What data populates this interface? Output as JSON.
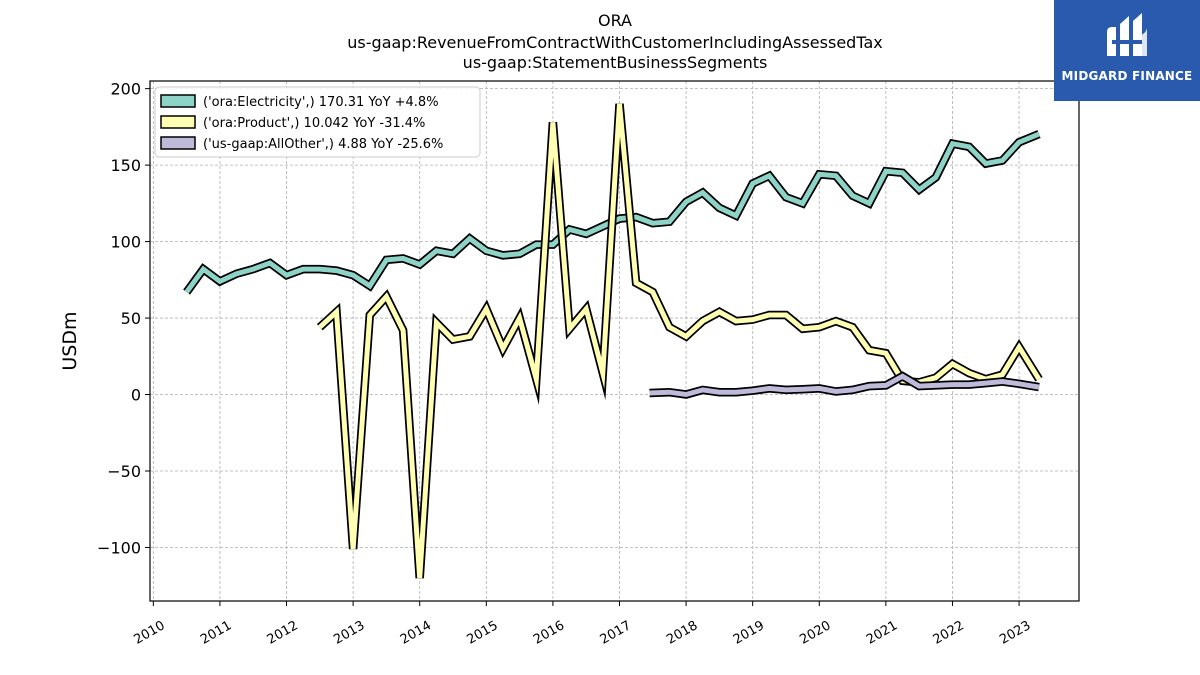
{
  "brand": {
    "name": "MIDGARD FINANCE",
    "background": "#2a5aad"
  },
  "chart_data": {
    "type": "line",
    "title": [
      "ORA",
      "us-gaap:RevenueFromContractWithCustomerIncludingAssessedTax",
      "us-gaap:StatementBusinessSegments"
    ],
    "xlabel": "",
    "ylabel": "USDm",
    "ylim": [
      -135,
      205
    ],
    "xlim": [
      2009.95,
      2023.9
    ],
    "yticks": [
      -100,
      -50,
      0,
      50,
      100,
      150,
      200
    ],
    "yticklabels": [
      "−100",
      "−50",
      "0",
      "50",
      "100",
      "150",
      "200"
    ],
    "xticks": [
      2010,
      2011,
      2012,
      2013,
      2014,
      2015,
      2016,
      2017,
      2018,
      2019,
      2020,
      2021,
      2022,
      2023
    ],
    "xticklabels": [
      "2010",
      "2011",
      "2012",
      "2013",
      "2014",
      "2015",
      "2016",
      "2017",
      "2018",
      "2019",
      "2020",
      "2021",
      "2022",
      "2023"
    ],
    "grid": true,
    "legend_position": "top-left",
    "series": [
      {
        "name": "('ora:Electricity',) 170.31 YoY +4.8%",
        "color": "#8dd3c7",
        "x": [
          2010.5,
          2010.75,
          2011.0,
          2011.25,
          2011.5,
          2011.75,
          2012.0,
          2012.25,
          2012.5,
          2012.75,
          2013.0,
          2013.25,
          2013.5,
          2013.75,
          2014.0,
          2014.25,
          2014.5,
          2014.75,
          2015.0,
          2015.25,
          2015.5,
          2015.75,
          2016.0,
          2016.25,
          2016.5,
          2016.75,
          2017.0,
          2017.25,
          2017.5,
          2017.75,
          2018.0,
          2018.25,
          2018.5,
          2018.75,
          2019.0,
          2019.25,
          2019.5,
          2019.75,
          2020.0,
          2020.25,
          2020.5,
          2020.75,
          2021.0,
          2021.25,
          2021.5,
          2021.75,
          2022.0,
          2022.25,
          2022.5,
          2022.75,
          2023.0,
          2023.3
        ],
        "y": [
          67,
          82,
          74,
          79,
          82,
          86,
          78,
          82,
          82,
          81,
          78,
          71,
          88,
          89,
          85,
          94,
          92,
          102,
          94,
          91,
          92,
          98,
          98,
          108,
          105,
          110,
          115,
          116,
          112,
          113,
          126,
          132,
          122,
          117,
          138,
          143,
          129,
          125,
          144,
          143,
          130,
          125,
          146,
          145,
          134,
          142,
          164,
          162,
          151,
          153,
          165,
          170.31
        ]
      },
      {
        "name": "('ora:Product',) 10.042 YoY -31.4%",
        "color": "#ffffb3",
        "x": [
          2012.5,
          2012.75,
          2013.0,
          2013.25,
          2013.5,
          2013.75,
          2014.0,
          2014.25,
          2014.5,
          2014.75,
          2015.0,
          2015.25,
          2015.5,
          2015.75,
          2016.0,
          2016.25,
          2016.5,
          2016.75,
          2017.0,
          2017.25,
          2017.5,
          2017.75,
          2018.0,
          2018.25,
          2018.5,
          2018.75,
          2019.0,
          2019.25,
          2019.5,
          2019.75,
          2020.0,
          2020.25,
          2020.5,
          2020.75,
          2021.0,
          2021.25,
          2021.5,
          2021.75,
          2022.0,
          2022.25,
          2022.5,
          2022.75,
          2023.0,
          2023.3
        ],
        "y": [
          44,
          54,
          -101,
          52,
          64,
          42,
          -120,
          47,
          36,
          38,
          56,
          30,
          50,
          10,
          178,
          43,
          56,
          14,
          190,
          73,
          67,
          44,
          38,
          48,
          54,
          48,
          49,
          52,
          52,
          43,
          44,
          48,
          44,
          29,
          27,
          9,
          8,
          11,
          20,
          14,
          10,
          13,
          31,
          10.042
        ]
      },
      {
        "name": "('us-gaap:AllOther',) 4.88 YoY -25.6%",
        "color": "#bebada",
        "x": [
          2017.45,
          2017.75,
          2018.0,
          2018.25,
          2018.5,
          2018.75,
          2019.0,
          2019.25,
          2019.5,
          2019.75,
          2020.0,
          2020.25,
          2020.5,
          2020.75,
          2021.0,
          2021.25,
          2021.5,
          2021.75,
          2022.0,
          2022.25,
          2022.5,
          2022.75,
          2023.0,
          2023.3
        ],
        "y": [
          1,
          1.5,
          0,
          3,
          1.5,
          1.5,
          2.5,
          4,
          3,
          3.5,
          4,
          2,
          3,
          5.5,
          6,
          12,
          5.5,
          6,
          6.5,
          6.5,
          7.5,
          8.5,
          7,
          4.88
        ]
      }
    ]
  }
}
